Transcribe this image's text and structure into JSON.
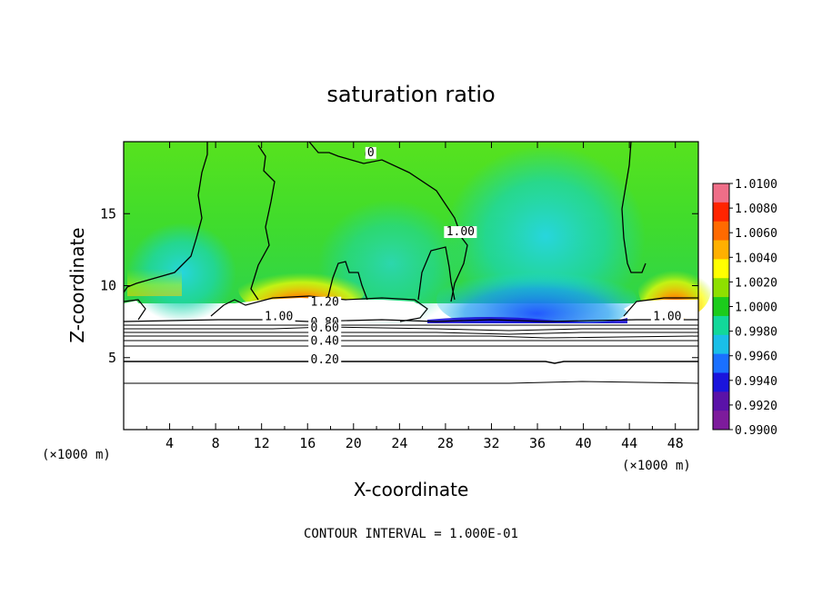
{
  "chart_data": {
    "type": "heatmap",
    "title": "saturation ratio",
    "xlabel": "X-coordinate",
    "ylabel": "Z-coordinate",
    "x_unit": "(×1000 m)",
    "y_unit": "(×1000 m)",
    "xlim": [
      0,
      50
    ],
    "ylim": [
      0,
      20
    ],
    "x_ticks": [
      4,
      8,
      12,
      16,
      20,
      24,
      28,
      32,
      36,
      40,
      44,
      48
    ],
    "y_ticks": [
      5,
      10,
      15
    ],
    "footer": "CONTOUR INTERVAL = 1.000E-01",
    "colorbar": {
      "labels": [
        "1.0100",
        "1.0080",
        "1.0060",
        "1.0040",
        "1.0020",
        "1.0000",
        "0.9980",
        "0.9960",
        "0.9940",
        "0.9920",
        "0.9900"
      ],
      "colors": [
        "#ef6e88",
        "#ff2400",
        "#ff6a00",
        "#ffb000",
        "#ffff00",
        "#8ee000",
        "#1ccc1c",
        "#12d89a",
        "#1abfe8",
        "#1a70ff",
        "#1a14dc",
        "#5a12a8",
        "#7d1b9c"
      ]
    },
    "contour_labels": [
      {
        "text": "1.20",
        "x": 17.5,
        "y": 8.6
      },
      {
        "text": "1.00",
        "x": 13.5,
        "y": 7.6
      },
      {
        "text": "0.80",
        "x": 17.5,
        "y": 7.2
      },
      {
        "text": "0.60",
        "x": 17.5,
        "y": 6.8
      },
      {
        "text": "0.40",
        "x": 17.5,
        "y": 5.9
      },
      {
        "text": "0.20",
        "x": 17.5,
        "y": 4.6
      },
      {
        "text": "1.00",
        "x": 29.3,
        "y": 13.5
      },
      {
        "text": "1.00",
        "x": 47.3,
        "y": 7.6
      },
      {
        "text": "0",
        "x": 21.5,
        "y": 19.0
      }
    ]
  }
}
